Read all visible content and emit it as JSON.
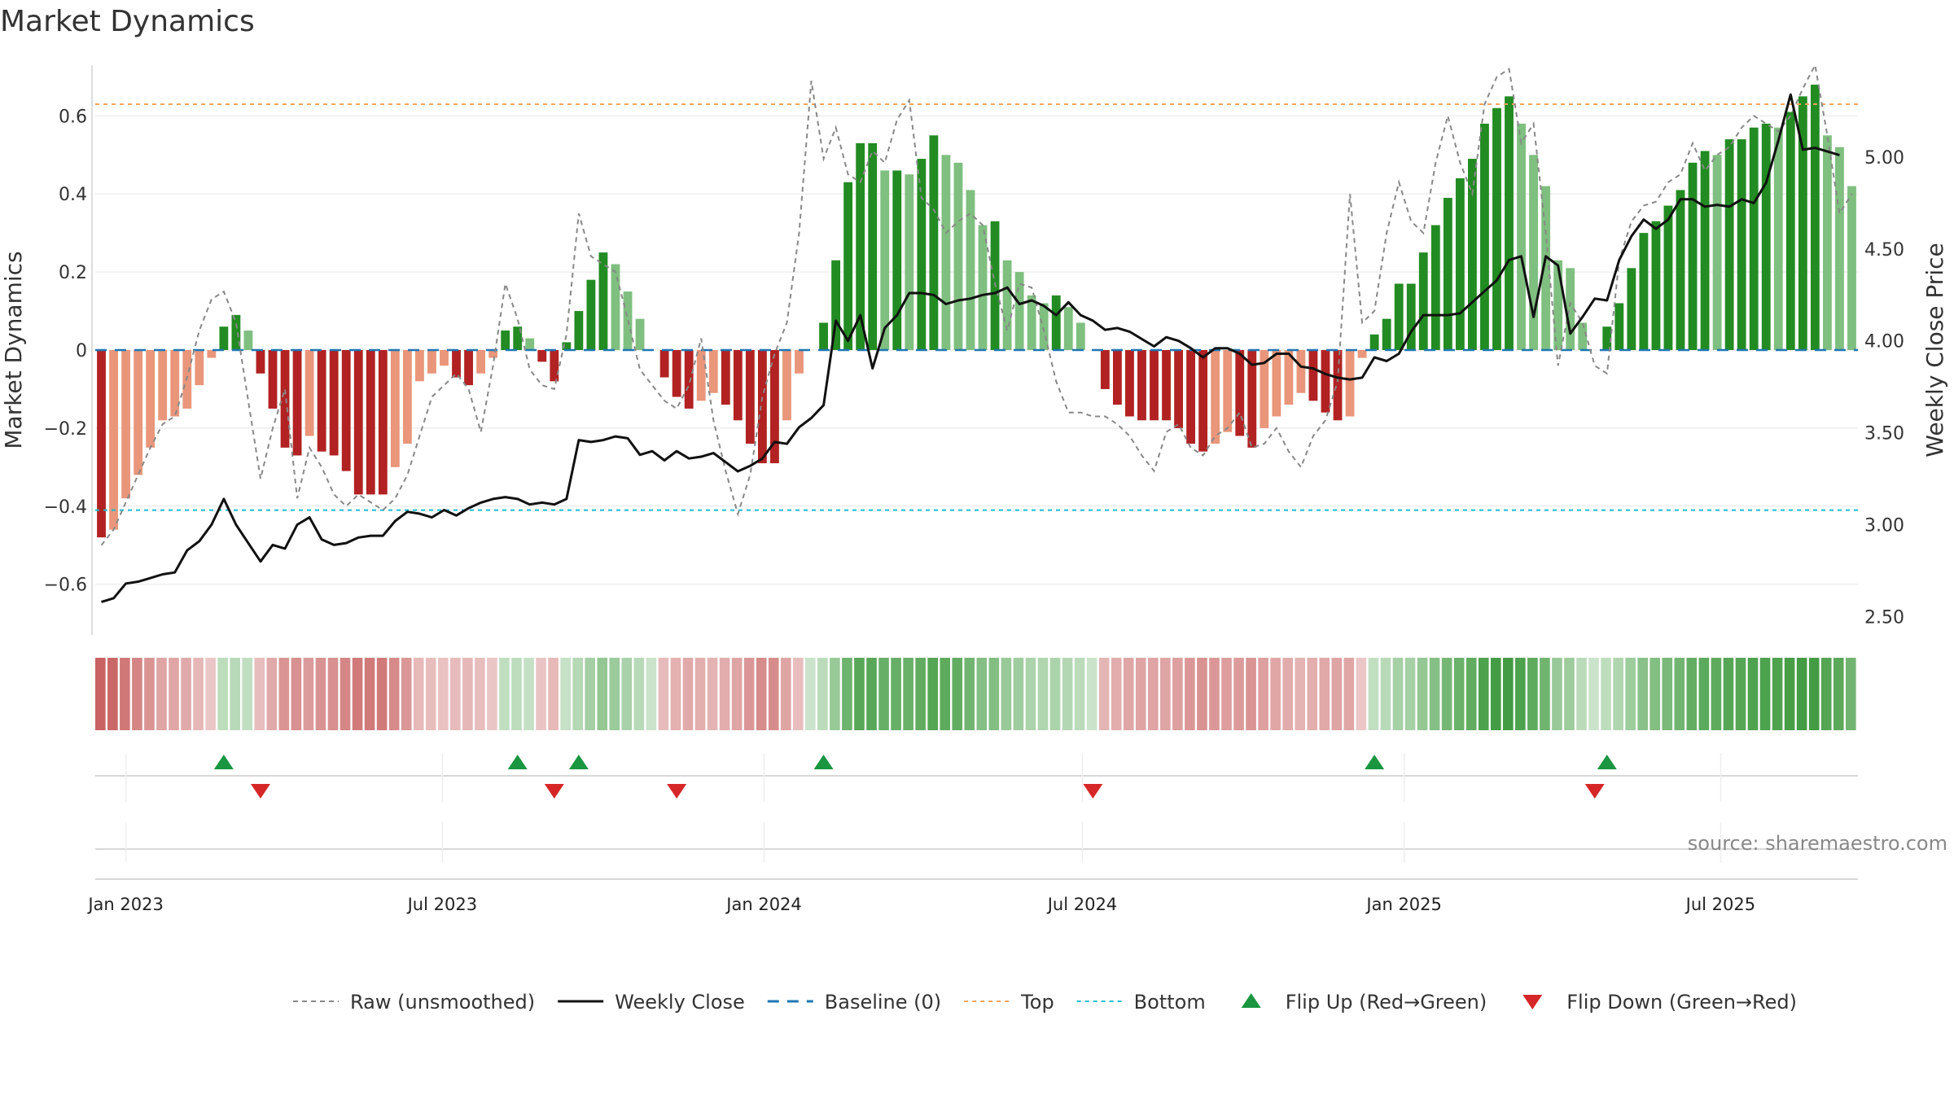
{
  "chart_data": {
    "type": "bar",
    "title": "Market Dynamics",
    "ylabel": "Market Dynamics",
    "y2label": "Weekly Close Price",
    "ylim": [
      -0.73,
      0.73
    ],
    "y2lim": [
      2.4,
      5.5
    ],
    "yticks": [
      {
        "v": 0.6,
        "label": "0.6"
      },
      {
        "v": 0.4,
        "label": "0.4"
      },
      {
        "v": 0.2,
        "label": "0.2"
      },
      {
        "v": 0,
        "label": "0"
      },
      {
        "v": -0.2,
        "label": "−0.2"
      },
      {
        "v": -0.4,
        "label": "−0.4"
      },
      {
        "v": -0.6,
        "label": "−0.6"
      }
    ],
    "y2ticks": [
      {
        "v": 5.0,
        "label": "5.00"
      },
      {
        "v": 4.5,
        "label": "4.50"
      },
      {
        "v": 4.0,
        "label": "4.00"
      },
      {
        "v": 3.5,
        "label": "3.50"
      },
      {
        "v": 3.0,
        "label": "3.00"
      },
      {
        "v": 2.5,
        "label": "2.50"
      }
    ],
    "xticks": [
      {
        "date": "2023-01-01",
        "label": "Jan 2023"
      },
      {
        "date": "2023-07-01",
        "label": "Jul 2023"
      },
      {
        "date": "2024-01-01",
        "label": "Jan 2024"
      },
      {
        "date": "2024-07-01",
        "label": "Jul 2024"
      },
      {
        "date": "2025-01-01",
        "label": "Jan 2025"
      },
      {
        "date": "2025-07-01",
        "label": "Jul 2025"
      }
    ],
    "first_week": "2022-12-18",
    "last_week": "2025-10-26",
    "top_level": 0.63,
    "bottom_level": -0.41,
    "baseline": 0,
    "grid": true,
    "colors": {
      "strong_red": "#b22222",
      "light_red": "#e9967a",
      "strong_green": "#228b22",
      "light_green": "#7fbf7f",
      "close_line": "#111111",
      "raw_line": "#888888",
      "baseline": "#1f77b4",
      "top": "#f4a460",
      "bottom": "#17becf",
      "flip_up": "#1a9641",
      "flip_down": "#d62728"
    },
    "series": [
      {
        "name": "Market Dynamics",
        "values": [
          -0.48,
          -0.46,
          -0.38,
          -0.32,
          -0.25,
          -0.18,
          -0.17,
          -0.15,
          -0.09,
          -0.02,
          0.06,
          0.09,
          0.05,
          -0.06,
          -0.15,
          -0.25,
          -0.27,
          -0.22,
          -0.26,
          -0.27,
          -0.31,
          -0.37,
          -0.37,
          -0.37,
          -0.3,
          -0.24,
          -0.08,
          -0.06,
          -0.04,
          -0.07,
          -0.09,
          -0.06,
          -0.02,
          0.05,
          0.06,
          0.03,
          -0.03,
          -0.08,
          0.02,
          0.1,
          0.18,
          0.25,
          0.22,
          0.15,
          0.08,
          0.0,
          -0.07,
          -0.12,
          -0.15,
          -0.13,
          -0.11,
          -0.14,
          -0.18,
          -0.24,
          -0.29,
          -0.29,
          -0.18,
          -0.06,
          0.0,
          0.07,
          0.23,
          0.43,
          0.53,
          0.53,
          0.46,
          0.46,
          0.45,
          0.49,
          0.55,
          0.5,
          0.48,
          0.41,
          0.32,
          0.33,
          0.23,
          0.2,
          0.14,
          0.12,
          0.14,
          0.11,
          0.07,
          0.0,
          -0.1,
          -0.14,
          -0.17,
          -0.18,
          -0.18,
          -0.18,
          -0.2,
          -0.24,
          -0.26,
          -0.24,
          -0.21,
          -0.22,
          -0.25,
          -0.2,
          -0.17,
          -0.14,
          -0.11,
          -0.13,
          -0.16,
          -0.18,
          -0.17,
          -0.02,
          0.04,
          0.08,
          0.17,
          0.17,
          0.25,
          0.32,
          0.39,
          0.44,
          0.49,
          0.58,
          0.62,
          0.65,
          0.58,
          0.5,
          0.42,
          0.23,
          0.21,
          0.07,
          0.0,
          0.06,
          0.12,
          0.21,
          0.3,
          0.33,
          0.37,
          0.41,
          0.48,
          0.51,
          0.5,
          0.54,
          0.54,
          0.57,
          0.58,
          0.57,
          0.61,
          0.65,
          0.68,
          0.55,
          0.52,
          0.42
        ]
      },
      {
        "name": "Raw (unsmoothed)",
        "values": [
          -0.5,
          -0.46,
          -0.39,
          -0.32,
          -0.25,
          -0.19,
          -0.17,
          -0.07,
          0.05,
          0.13,
          0.15,
          0.07,
          -0.13,
          -0.33,
          -0.2,
          -0.1,
          -0.38,
          -0.25,
          -0.3,
          -0.37,
          -0.4,
          -0.37,
          -0.39,
          -0.41,
          -0.38,
          -0.32,
          -0.22,
          -0.12,
          -0.09,
          -0.06,
          -0.1,
          -0.21,
          -0.04,
          0.17,
          0.08,
          -0.05,
          -0.09,
          -0.1,
          0.04,
          0.35,
          0.24,
          0.22,
          0.2,
          0.08,
          -0.05,
          -0.09,
          -0.13,
          -0.15,
          -0.09,
          0.03,
          -0.18,
          -0.31,
          -0.42,
          -0.32,
          -0.12,
          -0.01,
          0.07,
          0.3,
          0.69,
          0.49,
          0.57,
          0.45,
          0.43,
          0.51,
          0.48,
          0.59,
          0.64,
          0.39,
          0.36,
          0.3,
          0.33,
          0.35,
          0.32,
          0.17,
          0.05,
          0.17,
          0.16,
          0.05,
          -0.08,
          -0.16,
          -0.16,
          -0.17,
          -0.17,
          -0.19,
          -0.22,
          -0.27,
          -0.31,
          -0.21,
          -0.19,
          -0.25,
          -0.27,
          -0.22,
          -0.2,
          -0.16,
          -0.25,
          -0.24,
          -0.2,
          -0.26,
          -0.3,
          -0.22,
          -0.18,
          -0.08,
          0.4,
          0.07,
          0.1,
          0.3,
          0.43,
          0.33,
          0.3,
          0.48,
          0.6,
          0.48,
          0.4,
          0.63,
          0.7,
          0.72,
          0.53,
          0.58,
          0.3,
          -0.04,
          0.12,
          0.07,
          -0.04,
          -0.06,
          0.23,
          0.33,
          0.37,
          0.38,
          0.43,
          0.45,
          0.53,
          0.46,
          0.5,
          0.52,
          0.57,
          0.6,
          0.58,
          0.56,
          0.6,
          0.67,
          0.73,
          0.55,
          0.35,
          0.4
        ]
      },
      {
        "name": "Weekly Close",
        "values": [
          2.58,
          2.6,
          2.68,
          2.69,
          2.71,
          2.73,
          2.74,
          2.86,
          2.91,
          3.0,
          3.14,
          3.0,
          2.9,
          2.8,
          2.89,
          2.87,
          3.0,
          3.04,
          2.92,
          2.89,
          2.9,
          2.93,
          2.94,
          2.94,
          3.02,
          3.07,
          3.06,
          3.04,
          3.08,
          3.05,
          3.09,
          3.12,
          3.14,
          3.15,
          3.14,
          3.11,
          3.12,
          3.11,
          3.14,
          3.46,
          3.45,
          3.46,
          3.48,
          3.47,
          3.38,
          3.4,
          3.35,
          3.4,
          3.36,
          3.37,
          3.39,
          3.34,
          3.29,
          3.32,
          3.36,
          3.45,
          3.44,
          3.53,
          3.58,
          3.65,
          4.11,
          4.0,
          4.14,
          3.85,
          4.07,
          4.14,
          4.26,
          4.26,
          4.25,
          4.2,
          4.22,
          4.23,
          4.25,
          4.26,
          4.29,
          4.2,
          4.22,
          4.19,
          4.14,
          4.21,
          4.14,
          4.11,
          4.06,
          4.07,
          4.05,
          4.01,
          3.97,
          4.02,
          4.0,
          3.96,
          3.91,
          3.96,
          3.96,
          3.93,
          3.87,
          3.88,
          3.93,
          3.93,
          3.86,
          3.85,
          3.82,
          3.8,
          3.79,
          3.8,
          3.91,
          3.89,
          3.93,
          4.05,
          4.14,
          4.14,
          4.14,
          4.15,
          4.21,
          4.27,
          4.33,
          4.44,
          4.46,
          4.13,
          4.46,
          4.41,
          4.04,
          4.13,
          4.23,
          4.22,
          4.44,
          4.57,
          4.66,
          4.61,
          4.66,
          4.77,
          4.77,
          4.73,
          4.74,
          4.73,
          4.77,
          4.75,
          4.86,
          5.09,
          5.34,
          5.04,
          5.05,
          5.03,
          5.01
        ]
      }
    ],
    "flips_up_weeks": [
      10,
      34,
      39,
      59,
      104,
      123
    ],
    "flips_down_weeks": [
      13,
      37,
      47,
      81,
      122
    ],
    "legend": [
      {
        "label": "Raw (unsmoothed)",
        "kind": "dashed-gray"
      },
      {
        "label": "Weekly Close",
        "kind": "solid-black"
      },
      {
        "label": "Baseline (0)",
        "kind": "dashed-blue"
      },
      {
        "label": "Top",
        "kind": "dotted-orange"
      },
      {
        "label": "Bottom",
        "kind": "dotted-cyan"
      },
      {
        "label": "Flip Up (Red→Green)",
        "kind": "triangle-up"
      },
      {
        "label": "Flip Down (Green→Red)",
        "kind": "triangle-down"
      }
    ],
    "legend_position": "bottom-center",
    "source_note": "source: sharemaestro.com"
  }
}
